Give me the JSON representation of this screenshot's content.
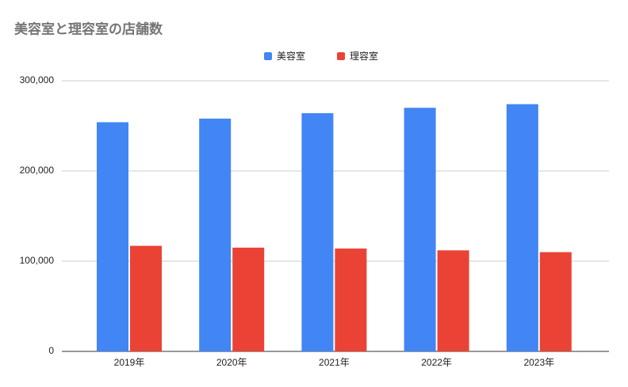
{
  "chart_data": {
    "type": "bar",
    "title": "美容室と理容室の店舗数",
    "categories": [
      "2019年",
      "2020年",
      "2021年",
      "2022年",
      "2023年"
    ],
    "series": [
      {
        "name": "美容室",
        "color": "#4285f4",
        "values": [
          254000,
          258000,
          264000,
          270000,
          274000
        ]
      },
      {
        "name": "理容室",
        "color": "#ea4335",
        "values": [
          117000,
          115000,
          114000,
          112000,
          110000
        ]
      }
    ],
    "ylim": [
      0,
      300000
    ],
    "yticks": [
      0,
      {
        "value": 100000,
        "label": "100,000"
      },
      {
        "value": 200000,
        "label": "200,000"
      },
      {
        "value": 300000,
        "label": "300,000"
      }
    ],
    "grid": true,
    "legend": "top"
  }
}
